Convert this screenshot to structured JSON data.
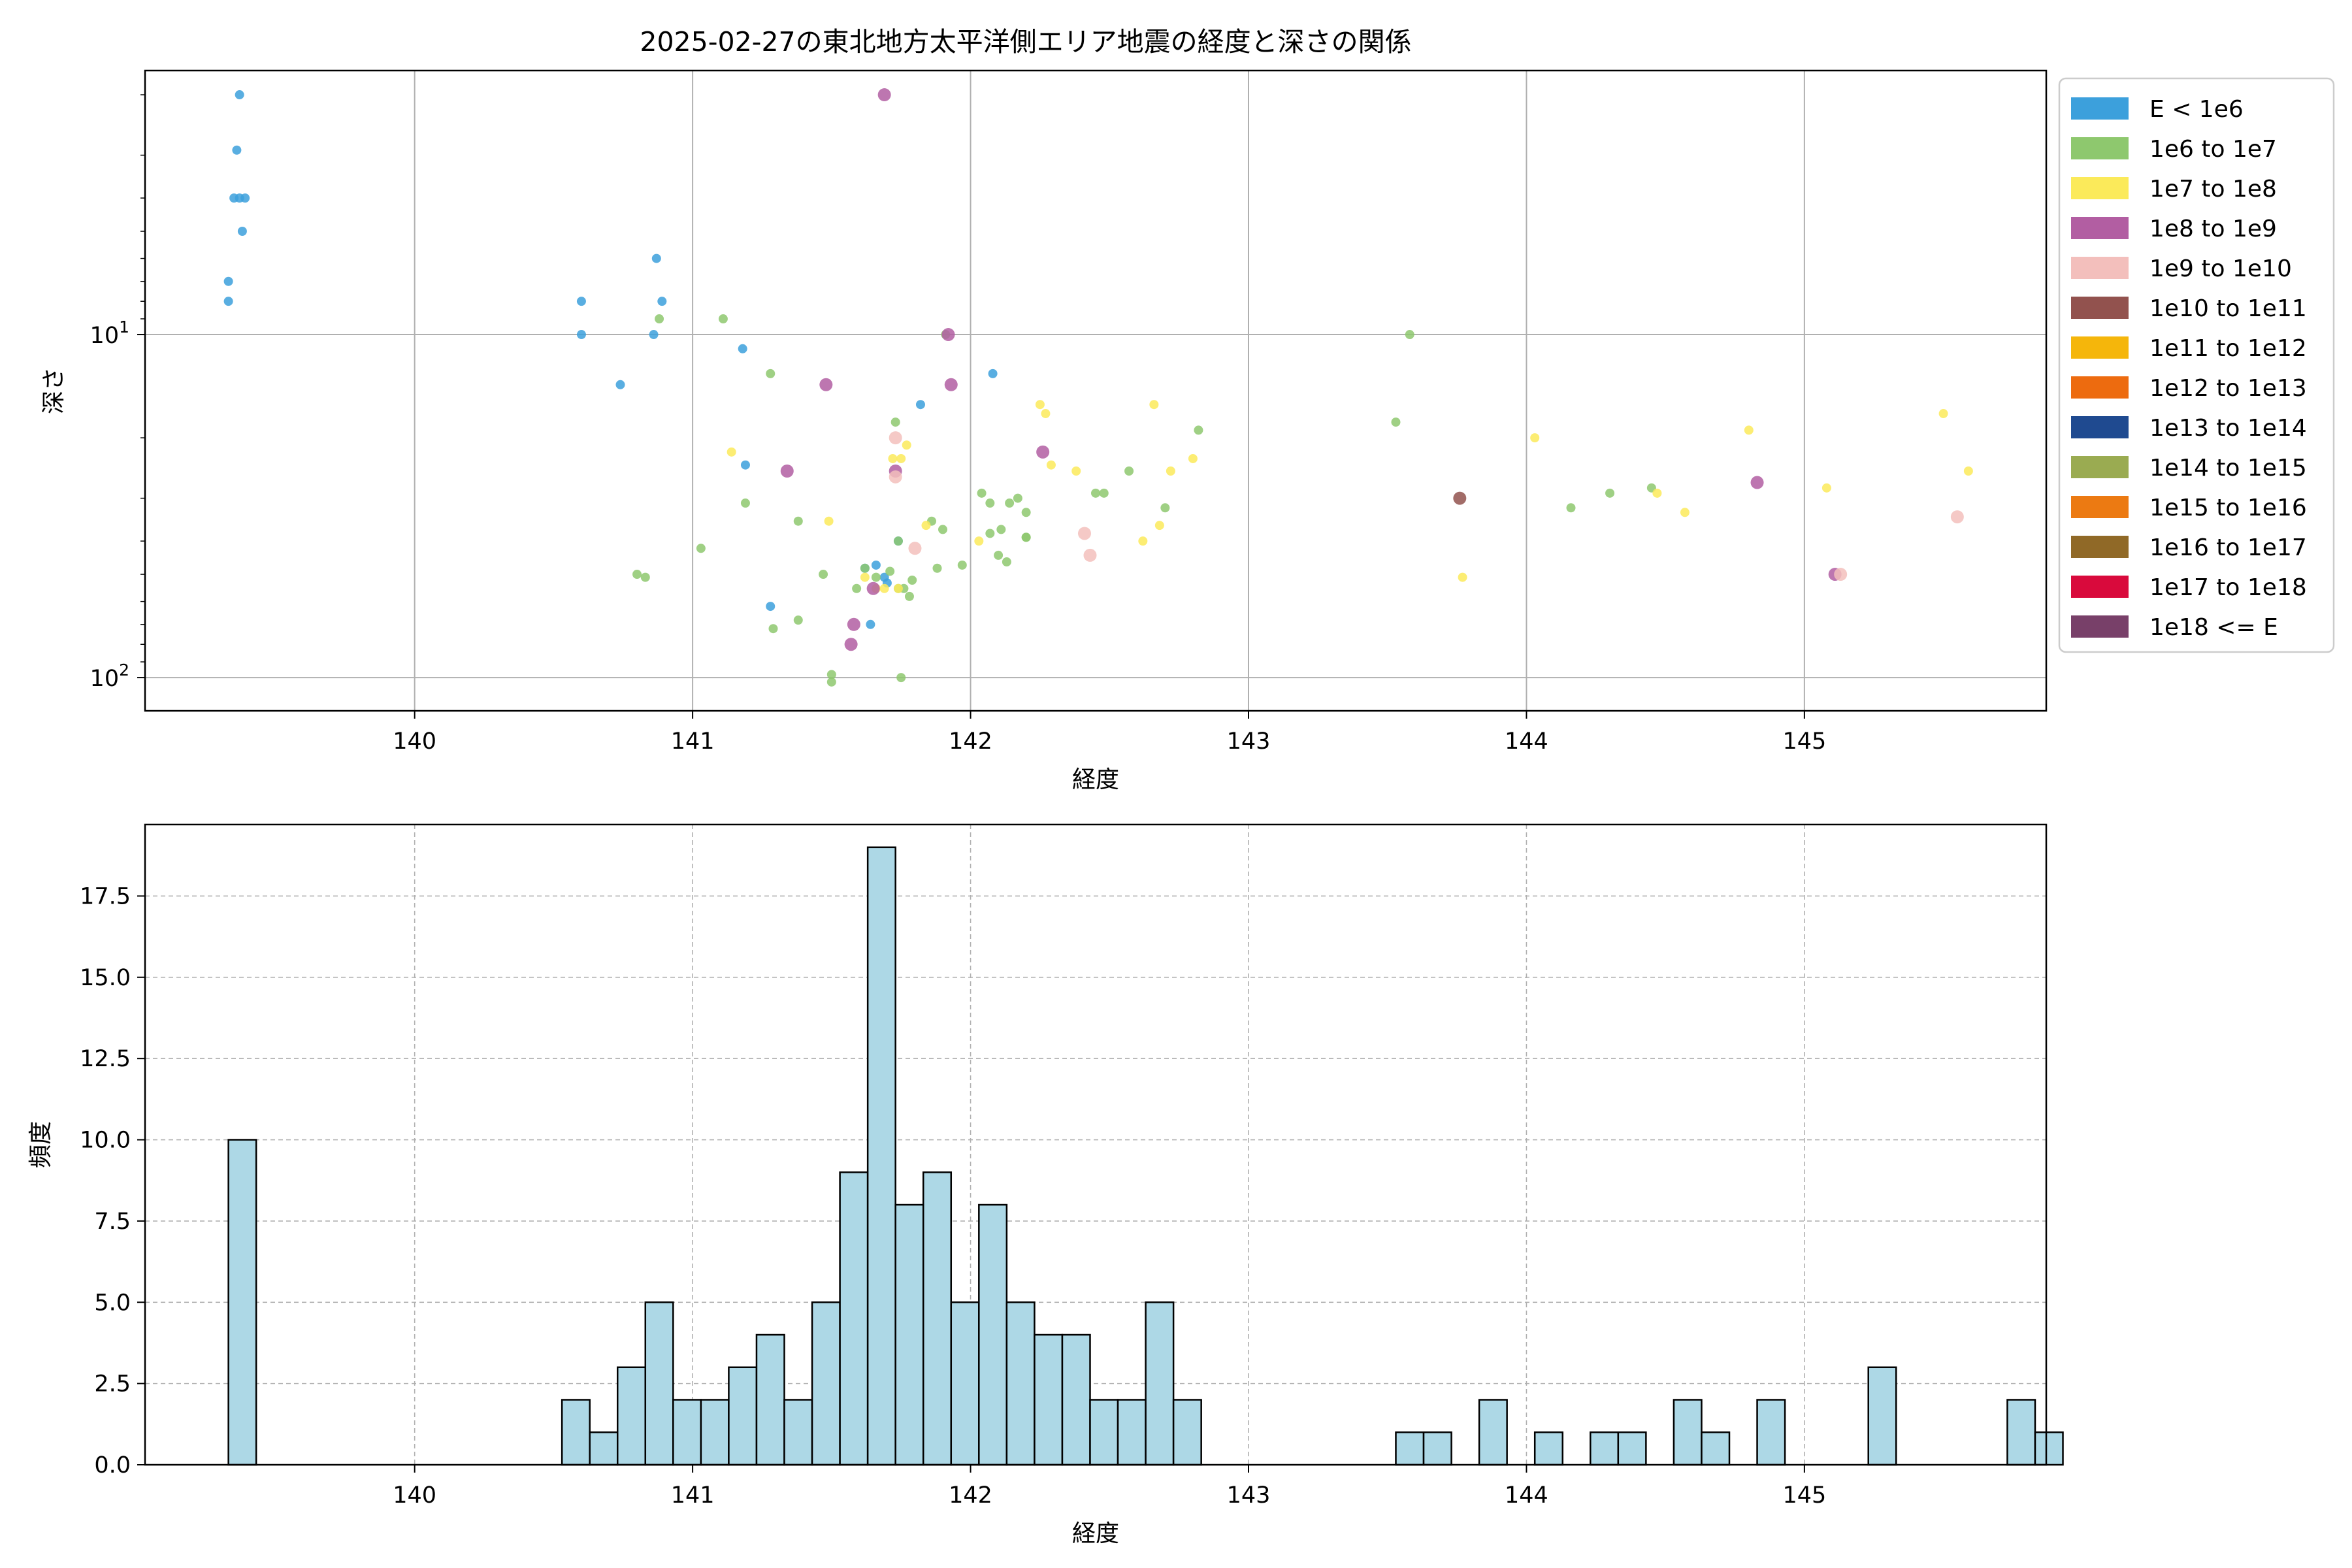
{
  "chart_data": [
    {
      "type": "scatter",
      "title": "2025-02-27の東北地方太平洋側エリア地震の経度と深さの関係",
      "xlabel": "経度",
      "ylabel": "深さ",
      "xlim": [
        139.03,
        145.87
      ],
      "ylim": [
        125,
        1.7
      ],
      "y_scale": "log",
      "y_inverted": true,
      "grid": true,
      "x_ticks": [
        {
          "value": 140,
          "label": "140"
        },
        {
          "value": 141,
          "label": "141"
        },
        {
          "value": 142,
          "label": "142"
        },
        {
          "value": 143,
          "label": "143"
        },
        {
          "value": 144,
          "label": "144"
        },
        {
          "value": 145,
          "label": "145"
        }
      ],
      "y_ticks": [
        {
          "value": 10,
          "base": "10",
          "exp": "1"
        },
        {
          "value": 100,
          "base": "10",
          "exp": "2"
        }
      ],
      "legend_position": "outside-right",
      "legend": [
        {
          "label": "E < 1e6",
          "color": "#3ca0dc"
        },
        {
          "label": "1e6 to 1e7",
          "color": "#8ec86e"
        },
        {
          "label": "1e7 to 1e8",
          "color": "#fbea5a"
        },
        {
          "label": "1e8 to 1e9",
          "color": "#b25ea2"
        },
        {
          "label": "1e9 to 1e10",
          "color": "#f3bfbc"
        },
        {
          "label": "1e10 to 1e11",
          "color": "#92524e"
        },
        {
          "label": "1e11 to 1e12",
          "color": "#f5b60b"
        },
        {
          "label": "1e12 to 1e13",
          "color": "#ed6b0f"
        },
        {
          "label": "1e13 to 1e14",
          "color": "#1f4a90"
        },
        {
          "label": "1e14 to 1e15",
          "color": "#9aab51"
        },
        {
          "label": "1e15 to 1e16",
          "color": "#ec7a12"
        },
        {
          "label": "1e16 to 1e17",
          "color": "#906927"
        },
        {
          "label": "1e17 to 1e18",
          "color": "#d90a3c"
        },
        {
          "label": "1e18 <= E",
          "color": "#784069"
        }
      ],
      "points": [
        {
          "x": 139.37,
          "y": 2.0,
          "c": 0
        },
        {
          "x": 139.36,
          "y": 2.9,
          "c": 0
        },
        {
          "x": 139.35,
          "y": 4.0,
          "c": 0
        },
        {
          "x": 139.37,
          "y": 4.0,
          "c": 0
        },
        {
          "x": 139.39,
          "y": 4.0,
          "c": 0
        },
        {
          "x": 139.38,
          "y": 5.0,
          "c": 0
        },
        {
          "x": 139.33,
          "y": 7.0,
          "c": 0
        },
        {
          "x": 139.33,
          "y": 8.0,
          "c": 0
        },
        {
          "x": 140.6,
          "y": 8.0,
          "c": 0
        },
        {
          "x": 140.6,
          "y": 10.0,
          "c": 0
        },
        {
          "x": 140.74,
          "y": 14.0,
          "c": 0
        },
        {
          "x": 140.86,
          "y": 10.0,
          "c": 0
        },
        {
          "x": 140.87,
          "y": 6.0,
          "c": 0
        },
        {
          "x": 140.89,
          "y": 8.0,
          "c": 0
        },
        {
          "x": 141.18,
          "y": 11.0,
          "c": 0
        },
        {
          "x": 141.19,
          "y": 24.0,
          "c": 0
        },
        {
          "x": 141.28,
          "y": 62.0,
          "c": 0
        },
        {
          "x": 141.62,
          "y": 48.0,
          "c": 0
        },
        {
          "x": 141.64,
          "y": 70.0,
          "c": 0
        },
        {
          "x": 141.66,
          "y": 47.0,
          "c": 0
        },
        {
          "x": 141.69,
          "y": 51.0,
          "c": 0
        },
        {
          "x": 141.7,
          "y": 53.0,
          "c": 0
        },
        {
          "x": 141.74,
          "y": 40.0,
          "c": 0
        },
        {
          "x": 141.82,
          "y": 16.0,
          "c": 0
        },
        {
          "x": 142.08,
          "y": 13.0,
          "c": 0
        },
        {
          "x": 140.8,
          "y": 50.0,
          "c": 1
        },
        {
          "x": 140.83,
          "y": 51.0,
          "c": 1
        },
        {
          "x": 140.88,
          "y": 9.0,
          "c": 1
        },
        {
          "x": 141.03,
          "y": 42.0,
          "c": 1
        },
        {
          "x": 141.11,
          "y": 9.0,
          "c": 1
        },
        {
          "x": 141.19,
          "y": 31.0,
          "c": 1
        },
        {
          "x": 141.28,
          "y": 13.0,
          "c": 1
        },
        {
          "x": 141.29,
          "y": 72.0,
          "c": 1
        },
        {
          "x": 141.38,
          "y": 35.0,
          "c": 1
        },
        {
          "x": 141.38,
          "y": 68.0,
          "c": 1
        },
        {
          "x": 141.47,
          "y": 50.0,
          "c": 1
        },
        {
          "x": 141.5,
          "y": 98.0,
          "c": 1
        },
        {
          "x": 141.5,
          "y": 103.0,
          "c": 1
        },
        {
          "x": 141.59,
          "y": 55.0,
          "c": 1
        },
        {
          "x": 141.62,
          "y": 48.0,
          "c": 1
        },
        {
          "x": 141.66,
          "y": 51.0,
          "c": 1
        },
        {
          "x": 141.71,
          "y": 49.0,
          "c": 1
        },
        {
          "x": 141.73,
          "y": 18.0,
          "c": 1
        },
        {
          "x": 141.74,
          "y": 40.0,
          "c": 1
        },
        {
          "x": 141.74,
          "y": 55.0,
          "c": 1
        },
        {
          "x": 141.75,
          "y": 100.0,
          "c": 1
        },
        {
          "x": 141.76,
          "y": 55.0,
          "c": 1
        },
        {
          "x": 141.78,
          "y": 58.0,
          "c": 1
        },
        {
          "x": 141.79,
          "y": 52.0,
          "c": 1
        },
        {
          "x": 141.86,
          "y": 35.0,
          "c": 1
        },
        {
          "x": 141.88,
          "y": 48.0,
          "c": 1
        },
        {
          "x": 141.9,
          "y": 37.0,
          "c": 1
        },
        {
          "x": 141.91,
          "y": 10.0,
          "c": 1
        },
        {
          "x": 141.97,
          "y": 47.0,
          "c": 1
        },
        {
          "x": 142.04,
          "y": 29.0,
          "c": 1
        },
        {
          "x": 142.07,
          "y": 31.0,
          "c": 1
        },
        {
          "x": 142.07,
          "y": 38.0,
          "c": 1
        },
        {
          "x": 142.1,
          "y": 44.0,
          "c": 1
        },
        {
          "x": 142.11,
          "y": 37.0,
          "c": 1
        },
        {
          "x": 142.13,
          "y": 46.0,
          "c": 1
        },
        {
          "x": 142.14,
          "y": 31.0,
          "c": 1
        },
        {
          "x": 142.17,
          "y": 30.0,
          "c": 1
        },
        {
          "x": 142.2,
          "y": 33.0,
          "c": 1
        },
        {
          "x": 142.2,
          "y": 39.0,
          "c": 1
        },
        {
          "x": 142.2,
          "y": 39.0,
          "c": 1
        },
        {
          "x": 142.45,
          "y": 29.0,
          "c": 1
        },
        {
          "x": 142.48,
          "y": 29.0,
          "c": 1
        },
        {
          "x": 142.57,
          "y": 25.0,
          "c": 1
        },
        {
          "x": 142.7,
          "y": 32.0,
          "c": 1
        },
        {
          "x": 142.82,
          "y": 19.0,
          "c": 1
        },
        {
          "x": 143.53,
          "y": 18.0,
          "c": 1
        },
        {
          "x": 143.58,
          "y": 10.0,
          "c": 1
        },
        {
          "x": 144.16,
          "y": 32.0,
          "c": 1
        },
        {
          "x": 144.3,
          "y": 29.0,
          "c": 1
        },
        {
          "x": 144.45,
          "y": 28.0,
          "c": 1
        },
        {
          "x": 141.14,
          "y": 22.0,
          "c": 2
        },
        {
          "x": 141.49,
          "y": 35.0,
          "c": 2
        },
        {
          "x": 141.62,
          "y": 51.0,
          "c": 2
        },
        {
          "x": 141.66,
          "y": 55.0,
          "c": 2
        },
        {
          "x": 141.69,
          "y": 55.0,
          "c": 2
        },
        {
          "x": 141.72,
          "y": 23.0,
          "c": 2
        },
        {
          "x": 141.74,
          "y": 55.0,
          "c": 2
        },
        {
          "x": 141.75,
          "y": 23.0,
          "c": 2
        },
        {
          "x": 141.77,
          "y": 21.0,
          "c": 2
        },
        {
          "x": 141.84,
          "y": 36.0,
          "c": 2
        },
        {
          "x": 142.03,
          "y": 40.0,
          "c": 2
        },
        {
          "x": 142.25,
          "y": 16.0,
          "c": 2
        },
        {
          "x": 142.27,
          "y": 17.0,
          "c": 2
        },
        {
          "x": 142.29,
          "y": 24.0,
          "c": 2
        },
        {
          "x": 142.38,
          "y": 25.0,
          "c": 2
        },
        {
          "x": 142.62,
          "y": 40.0,
          "c": 2
        },
        {
          "x": 142.66,
          "y": 16.0,
          "c": 2
        },
        {
          "x": 142.68,
          "y": 36.0,
          "c": 2
        },
        {
          "x": 142.72,
          "y": 25.0,
          "c": 2
        },
        {
          "x": 142.8,
          "y": 23.0,
          "c": 2
        },
        {
          "x": 143.77,
          "y": 51.0,
          "c": 2
        },
        {
          "x": 144.03,
          "y": 20.0,
          "c": 2
        },
        {
          "x": 144.47,
          "y": 29.0,
          "c": 2
        },
        {
          "x": 144.57,
          "y": 33.0,
          "c": 2
        },
        {
          "x": 144.8,
          "y": 19.0,
          "c": 2
        },
        {
          "x": 145.08,
          "y": 28.0,
          "c": 2
        },
        {
          "x": 145.5,
          "y": 17.0,
          "c": 2
        },
        {
          "x": 145.59,
          "y": 25.0,
          "c": 2
        },
        {
          "x": 141.34,
          "y": 25.0,
          "c": 3
        },
        {
          "x": 141.48,
          "y": 14.0,
          "c": 3
        },
        {
          "x": 141.57,
          "y": 80.0,
          "c": 3
        },
        {
          "x": 141.58,
          "y": 70.0,
          "c": 3
        },
        {
          "x": 141.65,
          "y": 55.0,
          "c": 3
        },
        {
          "x": 141.69,
          "y": 2.0,
          "c": 3
        },
        {
          "x": 141.73,
          "y": 25.0,
          "c": 3
        },
        {
          "x": 141.92,
          "y": 10.0,
          "c": 3
        },
        {
          "x": 141.93,
          "y": 14.0,
          "c": 3
        },
        {
          "x": 142.26,
          "y": 22.0,
          "c": 3
        },
        {
          "x": 144.83,
          "y": 27.0,
          "c": 3
        },
        {
          "x": 145.11,
          "y": 50.0,
          "c": 3
        },
        {
          "x": 141.73,
          "y": 20.0,
          "c": 4
        },
        {
          "x": 141.73,
          "y": 26.0,
          "c": 4
        },
        {
          "x": 141.8,
          "y": 42.0,
          "c": 4
        },
        {
          "x": 142.41,
          "y": 38.0,
          "c": 4
        },
        {
          "x": 142.43,
          "y": 44.0,
          "c": 4
        },
        {
          "x": 145.13,
          "y": 50.0,
          "c": 4
        },
        {
          "x": 145.55,
          "y": 34.0,
          "c": 4
        },
        {
          "x": 143.76,
          "y": 30.0,
          "c": 5
        }
      ]
    },
    {
      "type": "bar",
      "title": "",
      "xlabel": "経度",
      "ylabel": "頻度",
      "xlim": [
        139.03,
        145.87
      ],
      "ylim": [
        0,
        19.7
      ],
      "grid": true,
      "bar_color": "#add8e6",
      "x_ticks": [
        {
          "value": 140,
          "label": "140"
        },
        {
          "value": 141,
          "label": "141"
        },
        {
          "value": 142,
          "label": "142"
        },
        {
          "value": 143,
          "label": "143"
        },
        {
          "value": 144,
          "label": "144"
        },
        {
          "value": 145,
          "label": "145"
        }
      ],
      "y_ticks": [
        {
          "value": 0,
          "label": "0.0"
        },
        {
          "value": 2.5,
          "label": "2.5"
        },
        {
          "value": 5,
          "label": "5.0"
        },
        {
          "value": 7.5,
          "label": "7.5"
        },
        {
          "value": 10,
          "label": "10.0"
        },
        {
          "value": 12.5,
          "label": "12.5"
        },
        {
          "value": 15,
          "label": "15.0"
        },
        {
          "value": 17.5,
          "label": "17.5"
        }
      ],
      "bin_start": 139.33,
      "bin_width": 0.1,
      "values": [
        10,
        0,
        0,
        0,
        0,
        0,
        0,
        0,
        0,
        0,
        0,
        0,
        2,
        1,
        3,
        5,
        2,
        2,
        3,
        4,
        2,
        5,
        9,
        19,
        8,
        9,
        5,
        8,
        5,
        4,
        4,
        2,
        2,
        5,
        2,
        0,
        0,
        0,
        0,
        0,
        0,
        0,
        1,
        1,
        0,
        2,
        0,
        1,
        0,
        1,
        1,
        0,
        2,
        1,
        0,
        2,
        0,
        0,
        0,
        3,
        0,
        0,
        0,
        0,
        2,
        1
      ]
    }
  ]
}
